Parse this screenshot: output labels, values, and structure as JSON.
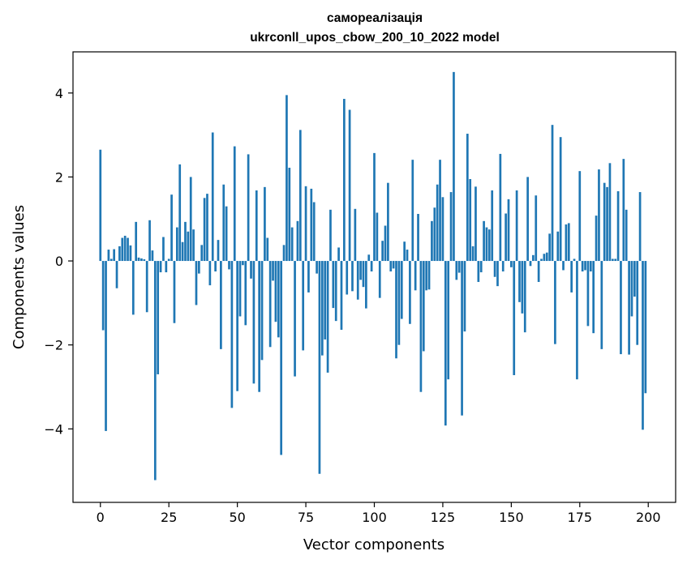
{
  "chart_data": {
    "type": "bar",
    "title": "самореалізація",
    "subtitle": "ukrconll_upos_cbow_200_10_2022 model",
    "xlabel": "Vector components",
    "ylabel": "Components values",
    "xlim": [
      -10,
      210
    ],
    "ylim": [
      -5.75,
      4.98
    ],
    "x_ticks": [
      0,
      25,
      50,
      75,
      100,
      125,
      150,
      175,
      200
    ],
    "y_ticks": [
      -4,
      -2,
      0,
      2,
      4
    ],
    "x_tick_labels": [
      "0",
      "25",
      "50",
      "75",
      "100",
      "125",
      "150",
      "175",
      "200"
    ],
    "y_tick_labels": [
      "−4",
      "−2",
      "0",
      "2",
      "4"
    ],
    "grid": false,
    "bar_color": "#1f77b4",
    "values": [
      2.65,
      -1.65,
      -4.05,
      0.27,
      0.05,
      0.28,
      -0.65,
      0.35,
      0.55,
      0.6,
      0.55,
      0.37,
      -1.28,
      0.93,
      0.08,
      0.06,
      0.04,
      -1.22,
      0.97,
      0.25,
      -5.22,
      -2.7,
      -0.27,
      0.57,
      -0.27,
      0.05,
      1.58,
      -1.48,
      0.8,
      2.3,
      0.45,
      0.93,
      0.7,
      2.0,
      0.75,
      -1.05,
      -0.3,
      0.38,
      1.5,
      1.6,
      -0.58,
      3.06,
      -0.25,
      0.5,
      -2.1,
      1.82,
      1.3,
      -0.2,
      -3.5,
      2.73,
      -3.1,
      -1.32,
      -0.1,
      -1.53,
      2.54,
      -0.42,
      -2.92,
      1.68,
      -3.12,
      -2.36,
      1.76,
      0.55,
      -2.05,
      -0.47,
      -1.45,
      -1.82,
      -4.62,
      0.38,
      3.95,
      2.22,
      0.8,
      -2.75,
      0.95,
      3.12,
      -2.13,
      1.78,
      -0.75,
      1.72,
      1.4,
      -0.3,
      -5.07,
      -2.25,
      -1.87,
      -2.66,
      1.22,
      -1.12,
      -1.43,
      0.32,
      -1.64,
      3.86,
      -0.8,
      3.6,
      -0.72,
      1.24,
      -0.92,
      -0.45,
      -0.62,
      -1.13,
      0.15,
      -0.25,
      2.57,
      1.15,
      -0.88,
      0.48,
      0.84,
      1.86,
      -0.25,
      -0.18,
      -2.32,
      -2.0,
      -1.38,
      0.46,
      0.27,
      -1.5,
      2.41,
      -0.7,
      1.12,
      -3.12,
      -2.15,
      -0.7,
      -0.68,
      0.95,
      1.27,
      1.82,
      2.41,
      1.52,
      -3.92,
      -2.82,
      1.64,
      4.5,
      -0.45,
      -0.28,
      -3.68,
      -1.68,
      3.03,
      1.95,
      0.35,
      1.77,
      -0.5,
      -0.27,
      0.95,
      0.8,
      0.75,
      1.68,
      -0.38,
      -0.6,
      2.55,
      -0.25,
      1.13,
      1.47,
      -0.15,
      -2.72,
      1.68,
      -0.98,
      -1.25,
      -1.7,
      2.0,
      -0.12,
      0.14,
      1.56,
      -0.5,
      0.05,
      0.17,
      0.2,
      0.65,
      3.24,
      -1.98,
      0.7,
      2.95,
      -0.22,
      0.87,
      0.9,
      -0.75,
      0.05,
      -2.82,
      2.14,
      -0.25,
      -0.22,
      -1.55,
      -0.25,
      -1.72,
      1.08,
      2.18,
      -2.1,
      1.86,
      1.76,
      2.33,
      0.05,
      0.05,
      1.66,
      -2.22,
      2.43,
      1.22,
      -2.23,
      -1.32,
      -0.85,
      -2.0,
      1.64,
      -4.02,
      -3.15
    ]
  }
}
